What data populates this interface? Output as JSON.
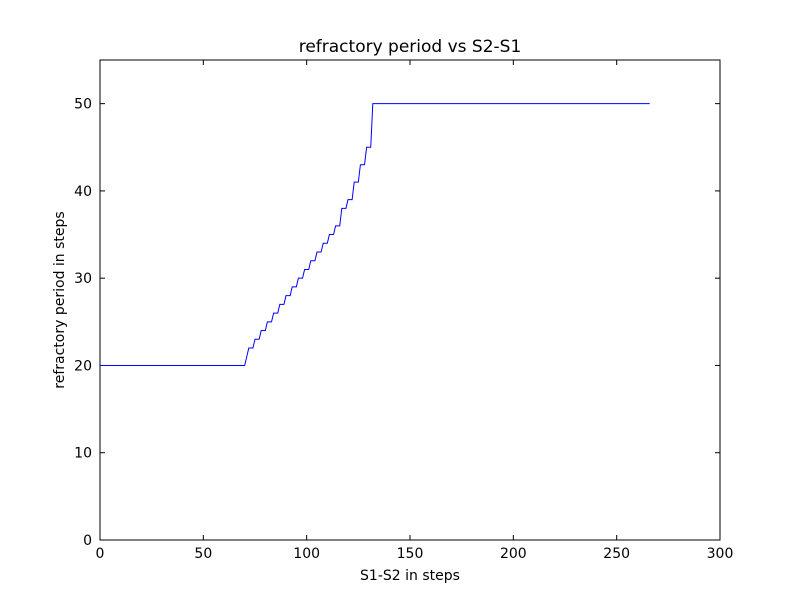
{
  "chart_data": {
    "type": "line",
    "title": "refractory period vs S2-S1",
    "xlabel": "S1-S2 in steps",
    "ylabel": "refractory period in steps",
    "xlim": [
      0,
      300
    ],
    "ylim": [
      0,
      55
    ],
    "xticks": [
      0,
      50,
      100,
      150,
      200,
      250,
      300
    ],
    "yticks": [
      0,
      10,
      20,
      30,
      40,
      50
    ],
    "grid": false,
    "legend": "none",
    "series": [
      {
        "color": "#0000ff",
        "x": [
          0,
          70,
          72,
          74,
          75,
          77,
          78,
          80,
          81,
          83,
          84,
          86,
          87,
          89,
          90,
          92,
          93,
          95,
          96,
          98,
          99,
          101,
          102,
          104,
          105,
          107,
          108,
          110,
          111,
          113,
          114,
          116,
          117,
          119,
          120,
          122,
          123,
          125,
          126,
          128,
          129,
          131,
          132,
          266
        ],
        "y": [
          20,
          20,
          22,
          22,
          23,
          23,
          24,
          24,
          25,
          25,
          26,
          26,
          27,
          27,
          28,
          28,
          29,
          29,
          30,
          30,
          31,
          31,
          32,
          32,
          33,
          33,
          34,
          34,
          35,
          35,
          36,
          36,
          38,
          38,
          39,
          39,
          41,
          41,
          43,
          43,
          45,
          45,
          50,
          50
        ]
      }
    ]
  }
}
